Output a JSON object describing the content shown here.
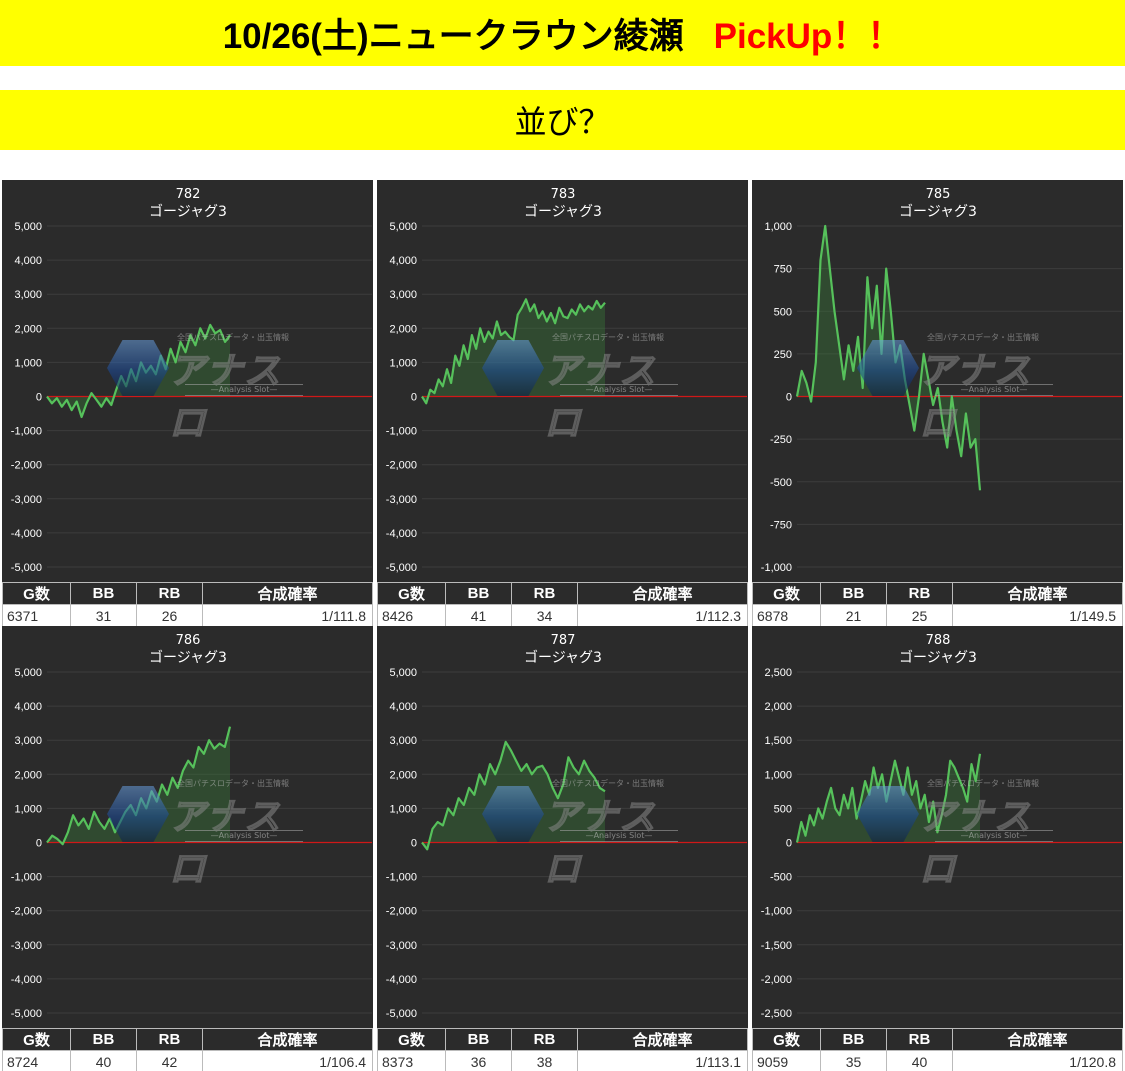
{
  "header": {
    "title": "10/26(土)ニュークラウン綾瀬",
    "pickup": "PickUp！！",
    "subtitle": "並び？"
  },
  "table_headers": {
    "games": "G数",
    "bb": "BB",
    "rb": "RB",
    "prob": "合成確率"
  },
  "watermark": {
    "logo_text": "アナスロ",
    "tagline": "—Analysis Slot—",
    "small_text": "全国パチスロデータ・出玉情報"
  },
  "colors": {
    "line": "#56c15b",
    "fill": "rgba(60,140,60,0.32)",
    "zero_line": "#d01818",
    "panel_bg": "#2b2b2b",
    "banner": "#ffff00",
    "pickup": "#ff0000"
  },
  "chart_data": [
    {
      "type": "line",
      "title": "782",
      "subtitle": "ゴージャグ3",
      "ylim": [
        -5000,
        5000
      ],
      "yticks": [
        "5,000",
        "4,000",
        "3,000",
        "2,000",
        "1,000",
        "0",
        "-1,000",
        "-2,000",
        "-3,000",
        "-4,000",
        "-5,000"
      ],
      "values": [
        0,
        -200,
        -50,
        -300,
        -100,
        -400,
        -150,
        -600,
        -200,
        100,
        -100,
        -300,
        -50,
        -250,
        200,
        600,
        300,
        800,
        450,
        1000,
        700,
        900,
        650,
        1200,
        800,
        1400,
        1000,
        1600,
        1300,
        1800,
        1500,
        2000,
        1700,
        2100,
        1850,
        1950,
        1600,
        1800
      ],
      "stats": {
        "games": "6371",
        "bb": "31",
        "rb": "26",
        "prob": "1/111.8"
      }
    },
    {
      "type": "line",
      "title": "783",
      "subtitle": "ゴージャグ3",
      "ylim": [
        -5000,
        5000
      ],
      "yticks": [
        "5,000",
        "4,000",
        "3,000",
        "2,000",
        "1,000",
        "0",
        "-1,000",
        "-2,000",
        "-3,000",
        "-4,000",
        "-5,000"
      ],
      "values": [
        0,
        -200,
        200,
        100,
        500,
        300,
        800,
        400,
        1200,
        900,
        1500,
        1100,
        1800,
        1400,
        2000,
        1600,
        1900,
        1700,
        2200,
        1800,
        1900,
        1750,
        1650,
        2400,
        2600,
        2850,
        2500,
        2700,
        2300,
        2500,
        2200,
        2450,
        2150,
        2600,
        2350,
        2300,
        2550,
        2400,
        2700,
        2500,
        2650,
        2550,
        2800,
        2600,
        2750
      ],
      "stats": {
        "games": "8426",
        "bb": "41",
        "rb": "34",
        "prob": "1/112.3"
      }
    },
    {
      "type": "line",
      "title": "785",
      "subtitle": "ゴージャグ3",
      "ylim": [
        -1000,
        1000
      ],
      "yticks": [
        "1,000",
        "750",
        "500",
        "250",
        "0",
        "-250",
        "-500",
        "-750",
        "-1,000"
      ],
      "values": [
        0,
        150,
        80,
        -30,
        200,
        800,
        1000,
        750,
        500,
        300,
        100,
        300,
        150,
        350,
        50,
        700,
        400,
        650,
        250,
        750,
        500,
        200,
        300,
        100,
        -50,
        -200,
        0,
        250,
        100,
        -50,
        50,
        -150,
        -300,
        0,
        -200,
        -350,
        -100,
        -300,
        -250,
        -550
      ],
      "stats": {
        "games": "6878",
        "bb": "21",
        "rb": "25",
        "prob": "1/149.5"
      }
    },
    {
      "type": "line",
      "title": "786",
      "subtitle": "ゴージャグ3",
      "ylim": [
        -5000,
        5000
      ],
      "yticks": [
        "5,000",
        "4,000",
        "3,000",
        "2,000",
        "1,000",
        "0",
        "-1,000",
        "-2,000",
        "-3,000",
        "-4,000",
        "-5,000"
      ],
      "values": [
        0,
        200,
        100,
        -50,
        300,
        800,
        500,
        700,
        400,
        900,
        600,
        400,
        700,
        300,
        600,
        900,
        1100,
        800,
        1300,
        1000,
        1500,
        1200,
        1700,
        1400,
        1900,
        1600,
        2100,
        2400,
        2200,
        2800,
        2600,
        3000,
        2750,
        2900,
        2800,
        3400
      ],
      "stats": {
        "games": "8724",
        "bb": "40",
        "rb": "42",
        "prob": "1/106.4"
      }
    },
    {
      "type": "line",
      "title": "787",
      "subtitle": "ゴージャグ3",
      "ylim": [
        -5000,
        5000
      ],
      "yticks": [
        "5,000",
        "4,000",
        "3,000",
        "2,000",
        "1,000",
        "0",
        "-1,000",
        "-2,000",
        "-3,000",
        "-4,000",
        "-5,000"
      ],
      "values": [
        0,
        -200,
        400,
        600,
        500,
        1000,
        800,
        1300,
        1100,
        1600,
        1400,
        2000,
        1700,
        2300,
        2000,
        2400,
        2950,
        2700,
        2400,
        2100,
        2300,
        2000,
        2200,
        2250,
        2000,
        1600,
        1300,
        1700,
        2500,
        2200,
        2000,
        2400,
        2100,
        1900,
        1600,
        1500
      ],
      "stats": {
        "games": "8373",
        "bb": "36",
        "rb": "38",
        "prob": "1/113.1"
      }
    },
    {
      "type": "line",
      "title": "788",
      "subtitle": "ゴージャグ3",
      "ylim": [
        -2500,
        2500
      ],
      "yticks": [
        "2,500",
        "2,000",
        "1,500",
        "1,000",
        "500",
        "0",
        "-500",
        "-1,000",
        "-1,500",
        "-2,000",
        "-2,500"
      ],
      "values": [
        0,
        300,
        100,
        400,
        250,
        500,
        350,
        600,
        800,
        500,
        400,
        700,
        500,
        800,
        350,
        600,
        900,
        700,
        1100,
        800,
        1000,
        600,
        900,
        1200,
        950,
        700,
        1100,
        700,
        900,
        500,
        700,
        300,
        600,
        150,
        400,
        700,
        1200,
        1100,
        950,
        800,
        600,
        1150,
        900,
        1300
      ],
      "stats": {
        "games": "9059",
        "bb": "35",
        "rb": "40",
        "prob": "1/120.8"
      }
    }
  ]
}
